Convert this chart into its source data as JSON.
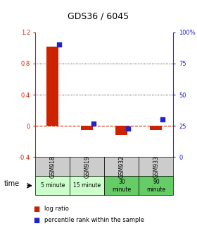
{
  "title": "GDS36 / 6045",
  "samples": [
    "GSM918",
    "GSM919",
    "GSM932",
    "GSM933"
  ],
  "time_labels": [
    "5 minute",
    "15 minute",
    "30\nminute",
    "90\nminute"
  ],
  "time_colors": [
    "#ccffcc",
    "#ccffcc",
    "#66cc66",
    "#66cc66"
  ],
  "log_ratio": [
    1.02,
    -0.05,
    -0.12,
    -0.05
  ],
  "percentile": [
    90,
    27,
    23,
    30
  ],
  "ylim_left": [
    -0.4,
    1.2
  ],
  "ylim_right": [
    0,
    100
  ],
  "yticks_left": [
    -0.4,
    0.0,
    0.4,
    0.8,
    1.2
  ],
  "yticks_right": [
    0,
    25,
    50,
    75,
    100
  ],
  "ytick_labels_left": [
    "-0.4",
    "0",
    "0.4",
    "0.8",
    "1.2"
  ],
  "ytick_labels_right": [
    "0",
    "25",
    "50",
    "75",
    "100%"
  ],
  "hlines": [
    0.4,
    0.8
  ],
  "bar_color": "#cc2200",
  "scatter_color": "#2222cc",
  "zero_line_color": "#cc2200",
  "bg_color": "#ffffff",
  "sample_header_color": "#cccccc",
  "legend_log_color": "#cc2200",
  "legend_pct_color": "#2222cc"
}
